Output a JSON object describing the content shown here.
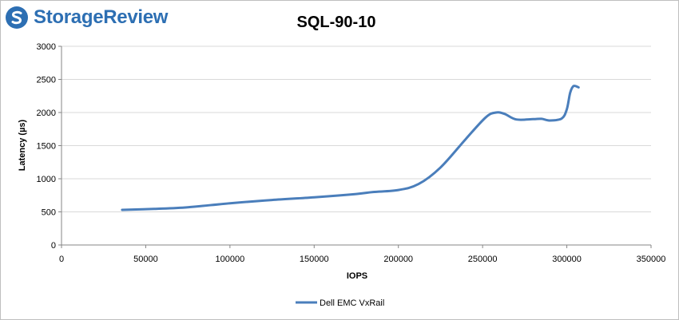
{
  "brand": {
    "name": "StorageReview"
  },
  "chart_data": {
    "type": "line",
    "title": "SQL-90-10",
    "xlabel": "IOPS",
    "ylabel": "Latency (µs)",
    "xlim": [
      0,
      350000
    ],
    "ylim": [
      0,
      3000
    ],
    "xticks": [
      0,
      50000,
      100000,
      150000,
      200000,
      250000,
      300000,
      350000
    ],
    "yticks": [
      0,
      500,
      1000,
      1500,
      2000,
      2500,
      3000
    ],
    "grid": "horizontal",
    "legend": "bottom",
    "series": [
      {
        "name": "Dell EMC VxRail",
        "color": "#4a7ebb",
        "x": [
          36000,
          55000,
          75000,
          100000,
          125000,
          150000,
          175000,
          185000,
          200000,
          212000,
          225000,
          240000,
          252000,
          258000,
          263000,
          270000,
          280000,
          285000,
          290000,
          297000,
          300000,
          302000,
          304000,
          307000
        ],
        "y": [
          530,
          545,
          570,
          630,
          680,
          720,
          770,
          800,
          830,
          920,
          1170,
          1600,
          1930,
          2000,
          1980,
          1895,
          1900,
          1905,
          1880,
          1910,
          2050,
          2300,
          2400,
          2380
        ]
      }
    ]
  }
}
